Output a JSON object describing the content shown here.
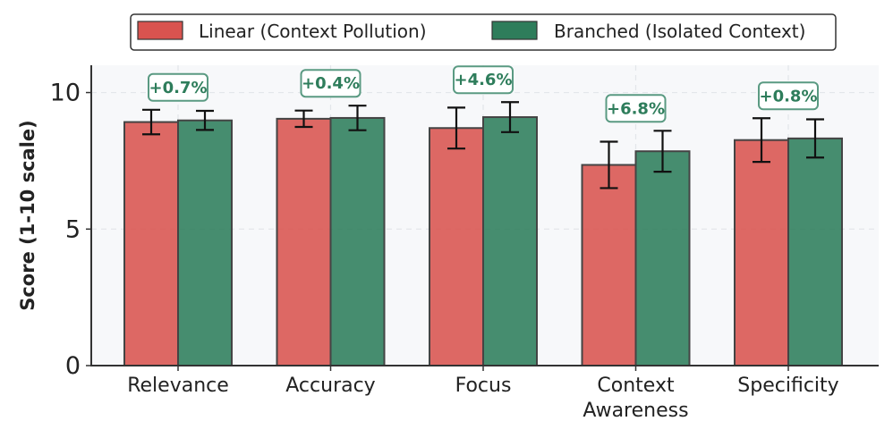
{
  "chart_data": {
    "type": "bar",
    "categories": [
      "Relevance",
      "Accuracy",
      "Focus",
      "Context Awareness",
      "Specificity"
    ],
    "category_lines": [
      [
        "Relevance"
      ],
      [
        "Accuracy"
      ],
      [
        "Focus"
      ],
      [
        "Context",
        "Awareness"
      ],
      [
        "Specificity"
      ]
    ],
    "series": [
      {
        "name": "Linear (Context Pollution)",
        "color": "#d9534f",
        "values": [
          8.92,
          9.04,
          8.7,
          7.35,
          8.26
        ],
        "errors": [
          0.45,
          0.3,
          0.75,
          0.85,
          0.8
        ]
      },
      {
        "name": "Branched (Isolated Context)",
        "color": "#2e7d5b",
        "values": [
          8.98,
          9.07,
          9.1,
          7.85,
          8.32
        ],
        "errors": [
          0.35,
          0.45,
          0.55,
          0.75,
          0.7
        ]
      }
    ],
    "annotations": [
      "+0.7%",
      "+0.4%",
      "+4.6%",
      "+6.8%",
      "+0.8%"
    ],
    "title": "",
    "xlabel": "",
    "ylabel": "Score (1-10 scale)",
    "ylim": [
      0,
      11
    ],
    "yticks": [
      0,
      5,
      10
    ],
    "grid": true,
    "legend_position": "top-center"
  }
}
